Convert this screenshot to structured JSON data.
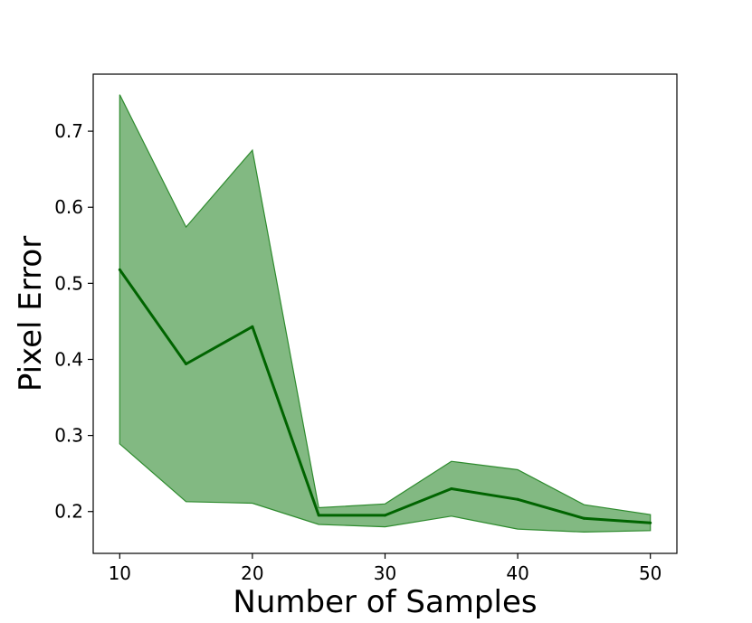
{
  "chart_data": {
    "type": "line",
    "title": "",
    "xlabel": "Number of Samples",
    "ylabel": "Pixel Error",
    "xlim": [
      8,
      52
    ],
    "ylim": [
      0.145,
      0.775
    ],
    "xticks": [
      10,
      20,
      30,
      40,
      50
    ],
    "yticks": [
      0.2,
      0.3,
      0.4,
      0.5,
      0.6,
      0.7
    ],
    "xtick_labels": [
      "10",
      "20",
      "30",
      "40",
      "50"
    ],
    "ytick_labels": [
      "0.2",
      "0.3",
      "0.4",
      "0.5",
      "0.6",
      "0.7"
    ],
    "grid": false,
    "x": [
      10,
      15,
      20,
      25,
      30,
      35,
      40,
      45,
      50
    ],
    "series": [
      {
        "values": [
          0.518,
          0.394,
          0.443,
          0.195,
          0.195,
          0.23,
          0.216,
          0.191,
          0.185
        ],
        "lower": [
          0.289,
          0.213,
          0.211,
          0.183,
          0.18,
          0.194,
          0.177,
          0.173,
          0.175
        ],
        "upper": [
          0.748,
          0.574,
          0.675,
          0.205,
          0.21,
          0.266,
          0.255,
          0.209,
          0.196
        ],
        "line_color": "#006400",
        "band_color": "#2e8b2e"
      }
    ]
  }
}
